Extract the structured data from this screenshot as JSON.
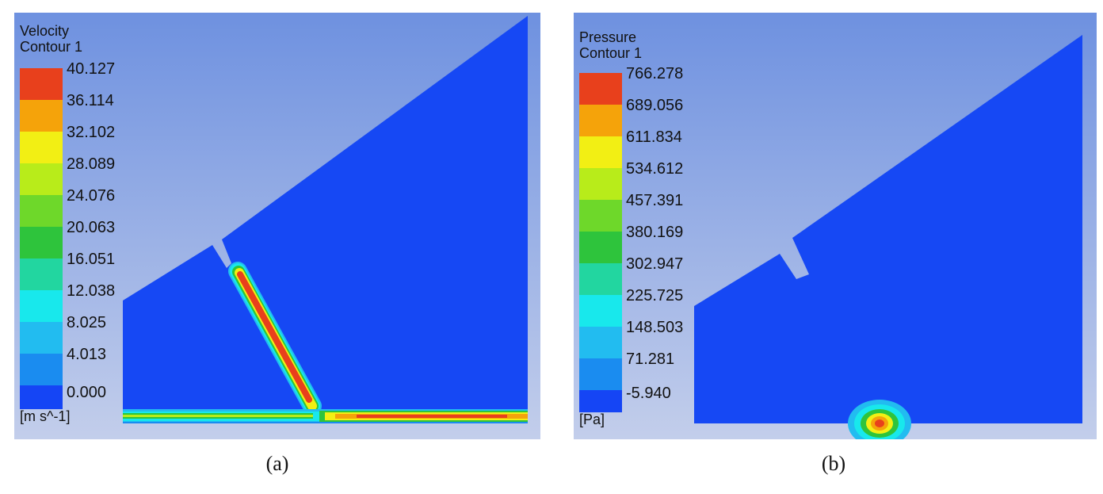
{
  "panels": [
    {
      "legend_title_line1": "Velocity",
      "legend_title_line2": "Contour 1",
      "unit": "[m s^-1]",
      "ticks": [
        "40.127",
        "36.114",
        "32.102",
        "28.089",
        "24.076",
        "20.063",
        "16.051",
        "12.038",
        "8.025",
        "4.013",
        "0.000"
      ],
      "caption": "(a)"
    },
    {
      "legend_title_line1": "Pressure",
      "legend_title_line2": "Contour 1",
      "unit": "[Pa]",
      "ticks": [
        "766.278",
        "689.056",
        "611.834",
        "534.612",
        "457.391",
        "380.169",
        "302.947",
        "225.725",
        "148.503",
        "71.281",
        "-5.940"
      ],
      "caption": "(b)"
    }
  ],
  "colors": {
    "scale": [
      "#e8401c",
      "#f5a30a",
      "#f2ef14",
      "#b8ec1a",
      "#6ed82a",
      "#2ec43c",
      "#22d6a0",
      "#18e8ec",
      "#22bcf0",
      "#1a8cf0",
      "#1545f5"
    ],
    "background_top": "#6e91e0",
    "background_bottom": "#c2cdea",
    "domain_fill": "#1648f4"
  }
}
